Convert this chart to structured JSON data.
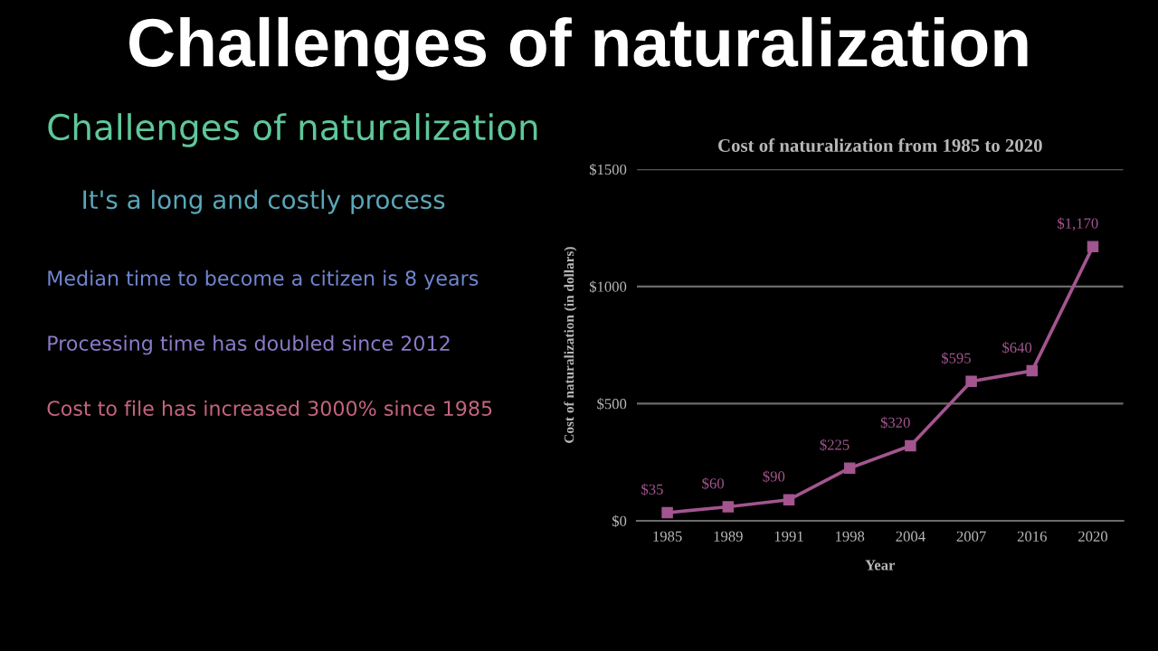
{
  "chart_data": [
    {
      "type": "other",
      "title": "Challenges of naturalization"
    },
    {
      "type": "other",
      "title": "Challenges of naturalization",
      "subtitle": "It's a long and costly process",
      "annotations": [
        "Median time to become a citizen is 8 years",
        "Processing time has doubled since 2012",
        "Cost to file has increased 3000% since 1985"
      ]
    },
    {
      "type": "line",
      "title": "Cost of naturalization from 1985 to 2020",
      "xlabel": "Year",
      "ylabel": "Cost of naturalization (in dollars)",
      "categories": [
        "1985",
        "1989",
        "1991",
        "1998",
        "2004",
        "2007",
        "2016",
        "2020"
      ],
      "series": [
        {
          "color": "#a3558f",
          "values": [
            35,
            60,
            90,
            225,
            320,
            595,
            640,
            1170
          ],
          "value_labels": [
            "$35",
            "$60",
            "$90",
            "$225",
            "$320",
            "$595",
            "$640",
            "$1,170"
          ]
        }
      ],
      "ylim": [
        0,
        1500
      ],
      "yticks": [
        {
          "value": 0,
          "label": "$0"
        },
        {
          "value": 500,
          "label": "$500"
        },
        {
          "value": 1000,
          "label": "$1000"
        },
        {
          "value": 1500,
          "label": "$1500"
        }
      ],
      "grid": "y",
      "marker": "square",
      "line_style": "solid"
    }
  ]
}
